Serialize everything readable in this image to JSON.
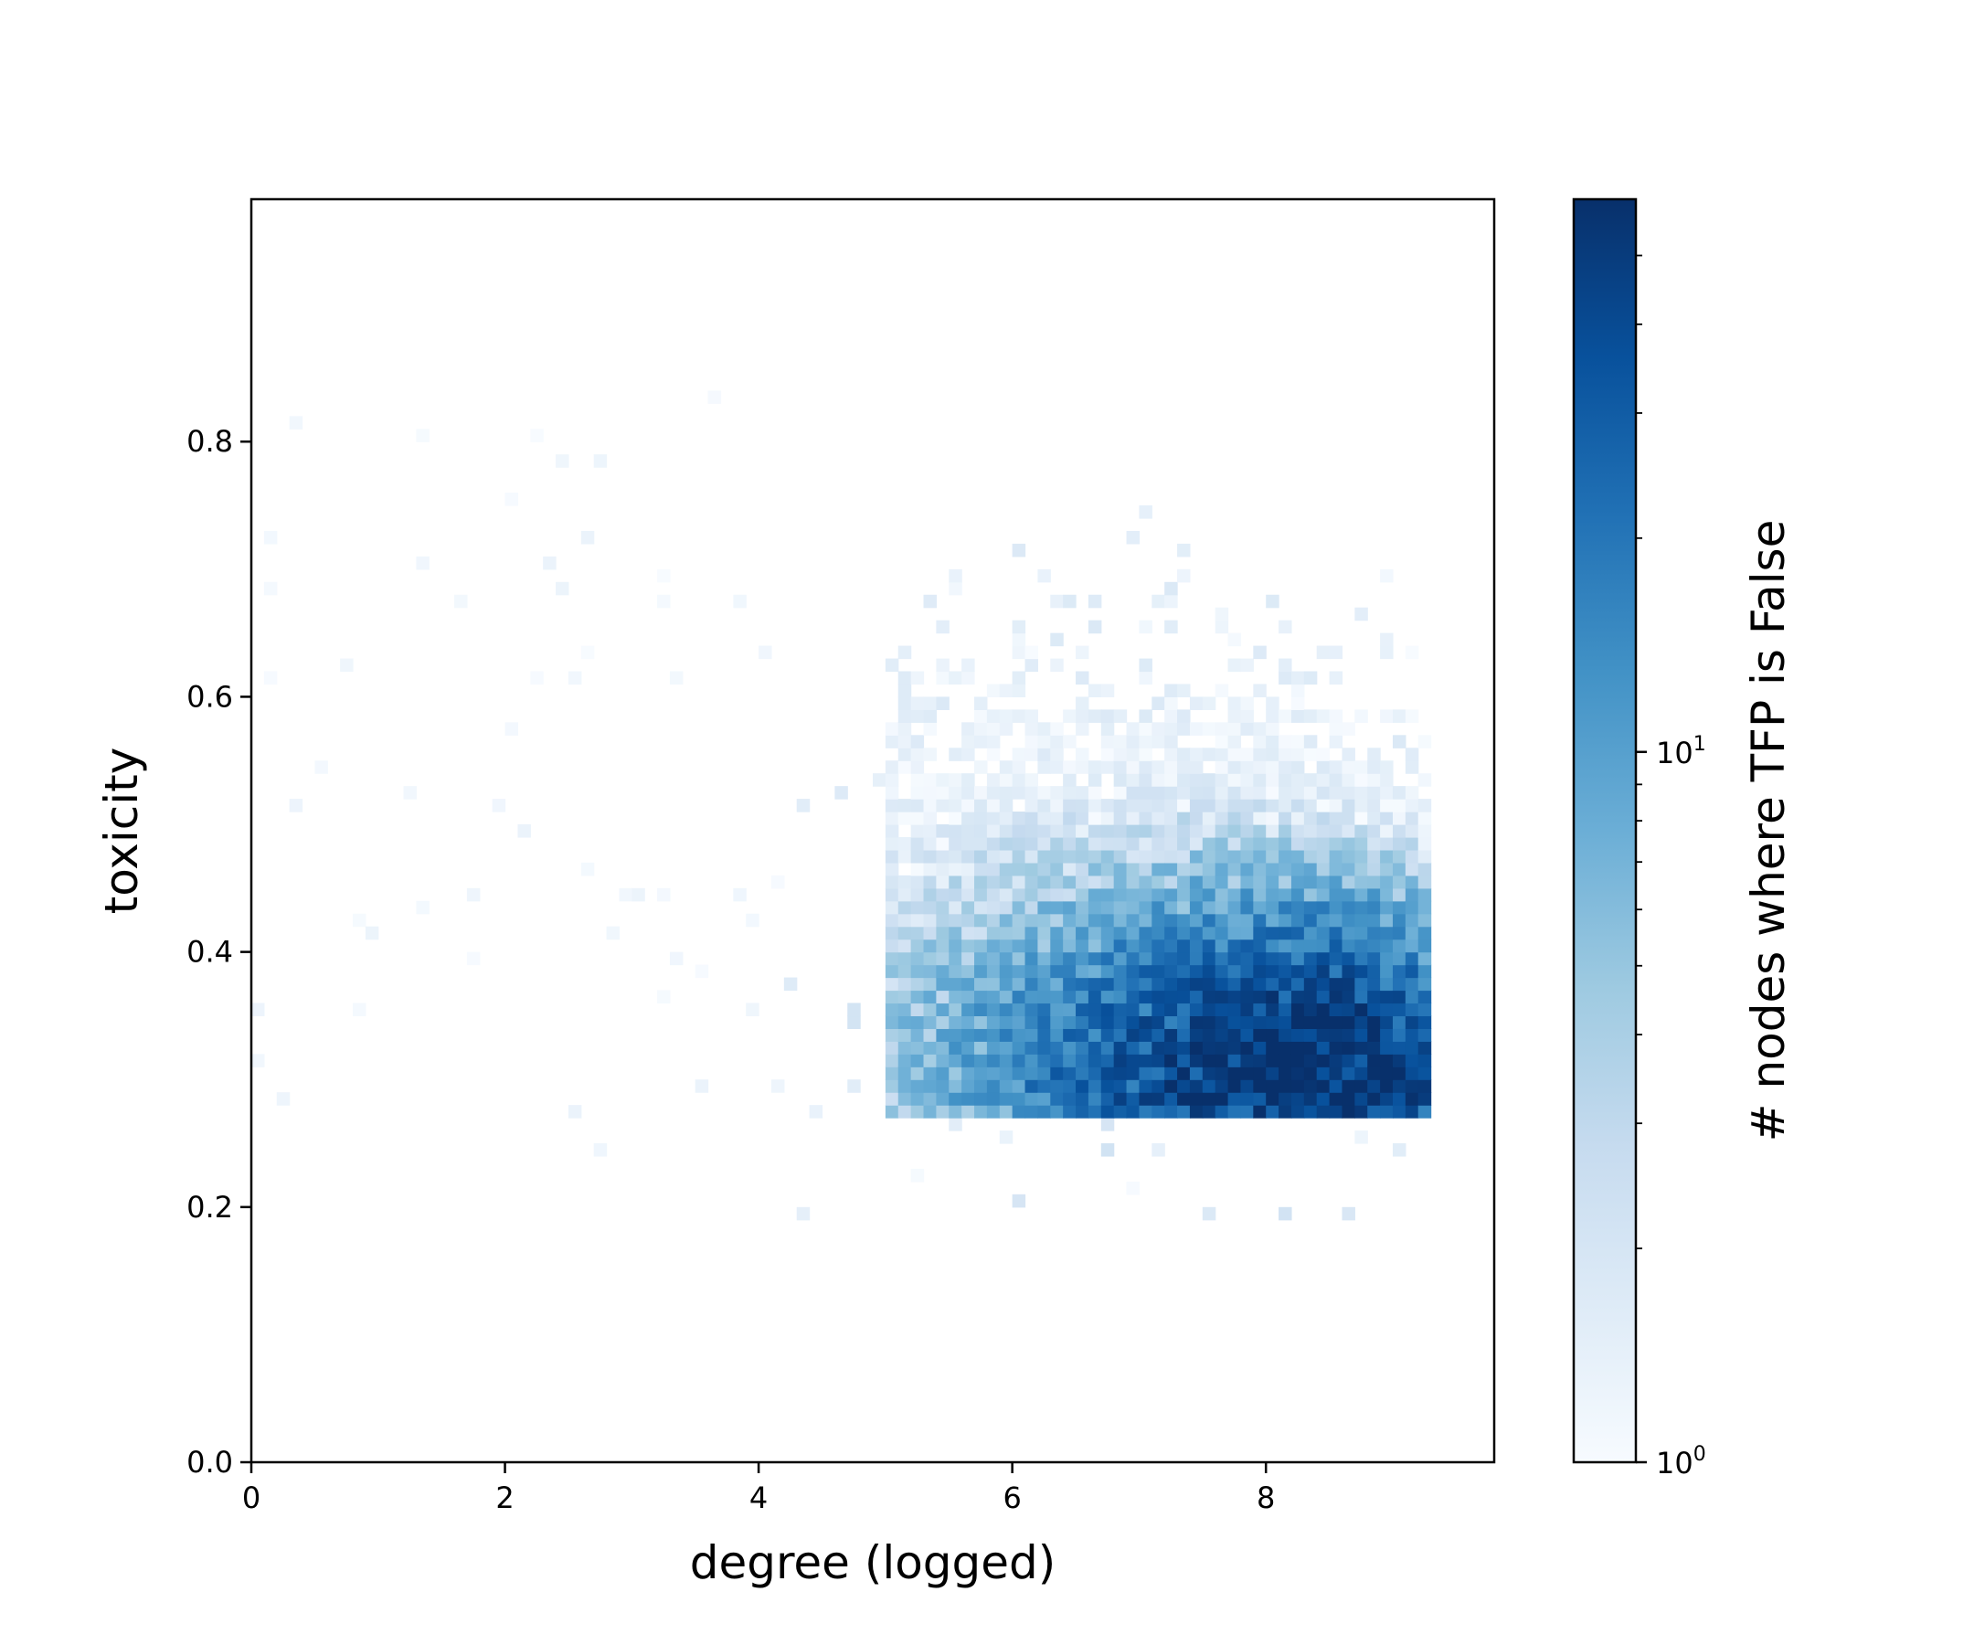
{
  "chart_data": {
    "type": "heatmap",
    "subtype": "2d-histogram",
    "title": "",
    "xlabel": "degree (logged)",
    "ylabel": "toxicity",
    "xlim": [
      0,
      9.8
    ],
    "ylim": [
      0,
      0.99
    ],
    "xticks": [
      0,
      2,
      4,
      6,
      8
    ],
    "xtick_labels": [
      "0",
      "2",
      "4",
      "6",
      "8"
    ],
    "yticks": [
      0.0,
      0.2,
      0.4,
      0.6,
      0.8
    ],
    "ytick_labels": [
      "0.0",
      "0.2",
      "0.4",
      "0.6",
      "0.8"
    ],
    "grid": false,
    "legend": "none",
    "bins": {
      "x_bins": 100,
      "y_bins": 100,
      "bin_width_x": 0.1,
      "bin_width_y": 0.01
    },
    "colormap": "Blues",
    "colorbar": {
      "label": "# nodes where TFP is False",
      "scale": "log",
      "range": [
        1,
        60
      ],
      "tick_labels": [
        {
          "value": 1,
          "base": "10",
          "exp": "0"
        },
        {
          "value": 10,
          "base": "10",
          "exp": "1"
        }
      ]
    },
    "peak": {
      "x": 8.45,
      "y": 0.295,
      "count": 60
    },
    "colors": {
      "low": "#f7fbff",
      "mid": "#6baed6",
      "high": "#08306b"
    }
  }
}
